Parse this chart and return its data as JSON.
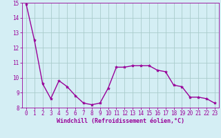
{
  "x": [
    0,
    1,
    2,
    3,
    4,
    5,
    6,
    7,
    8,
    9,
    10,
    11,
    12,
    13,
    14,
    15,
    16,
    17,
    18,
    19,
    20,
    21,
    22,
    23
  ],
  "y": [
    14.9,
    12.5,
    9.6,
    8.6,
    9.8,
    9.4,
    8.8,
    8.3,
    8.2,
    8.3,
    9.3,
    10.7,
    10.7,
    10.8,
    10.8,
    10.8,
    10.5,
    10.4,
    9.5,
    9.4,
    8.7,
    8.7,
    8.6,
    8.3
  ],
  "line_color": "#990099",
  "marker": "*",
  "marker_size": 3,
  "bg_color": "#d4eef4",
  "grid_color": "#aacccc",
  "xlabel": "Windchill (Refroidissement éolien,°C)",
  "xlabel_color": "#990099",
  "tick_color": "#990099",
  "spine_color": "#990099",
  "ylim": [
    8,
    15
  ],
  "xlim": [
    -0.5,
    23.5
  ],
  "yticks": [
    8,
    9,
    10,
    11,
    12,
    13,
    14,
    15
  ],
  "xticks": [
    0,
    1,
    2,
    3,
    4,
    5,
    6,
    7,
    8,
    9,
    10,
    11,
    12,
    13,
    14,
    15,
    16,
    17,
    18,
    19,
    20,
    21,
    22,
    23
  ],
  "linewidth": 1.0,
  "tick_fontsize": 5.5,
  "xlabel_fontsize": 6.0
}
